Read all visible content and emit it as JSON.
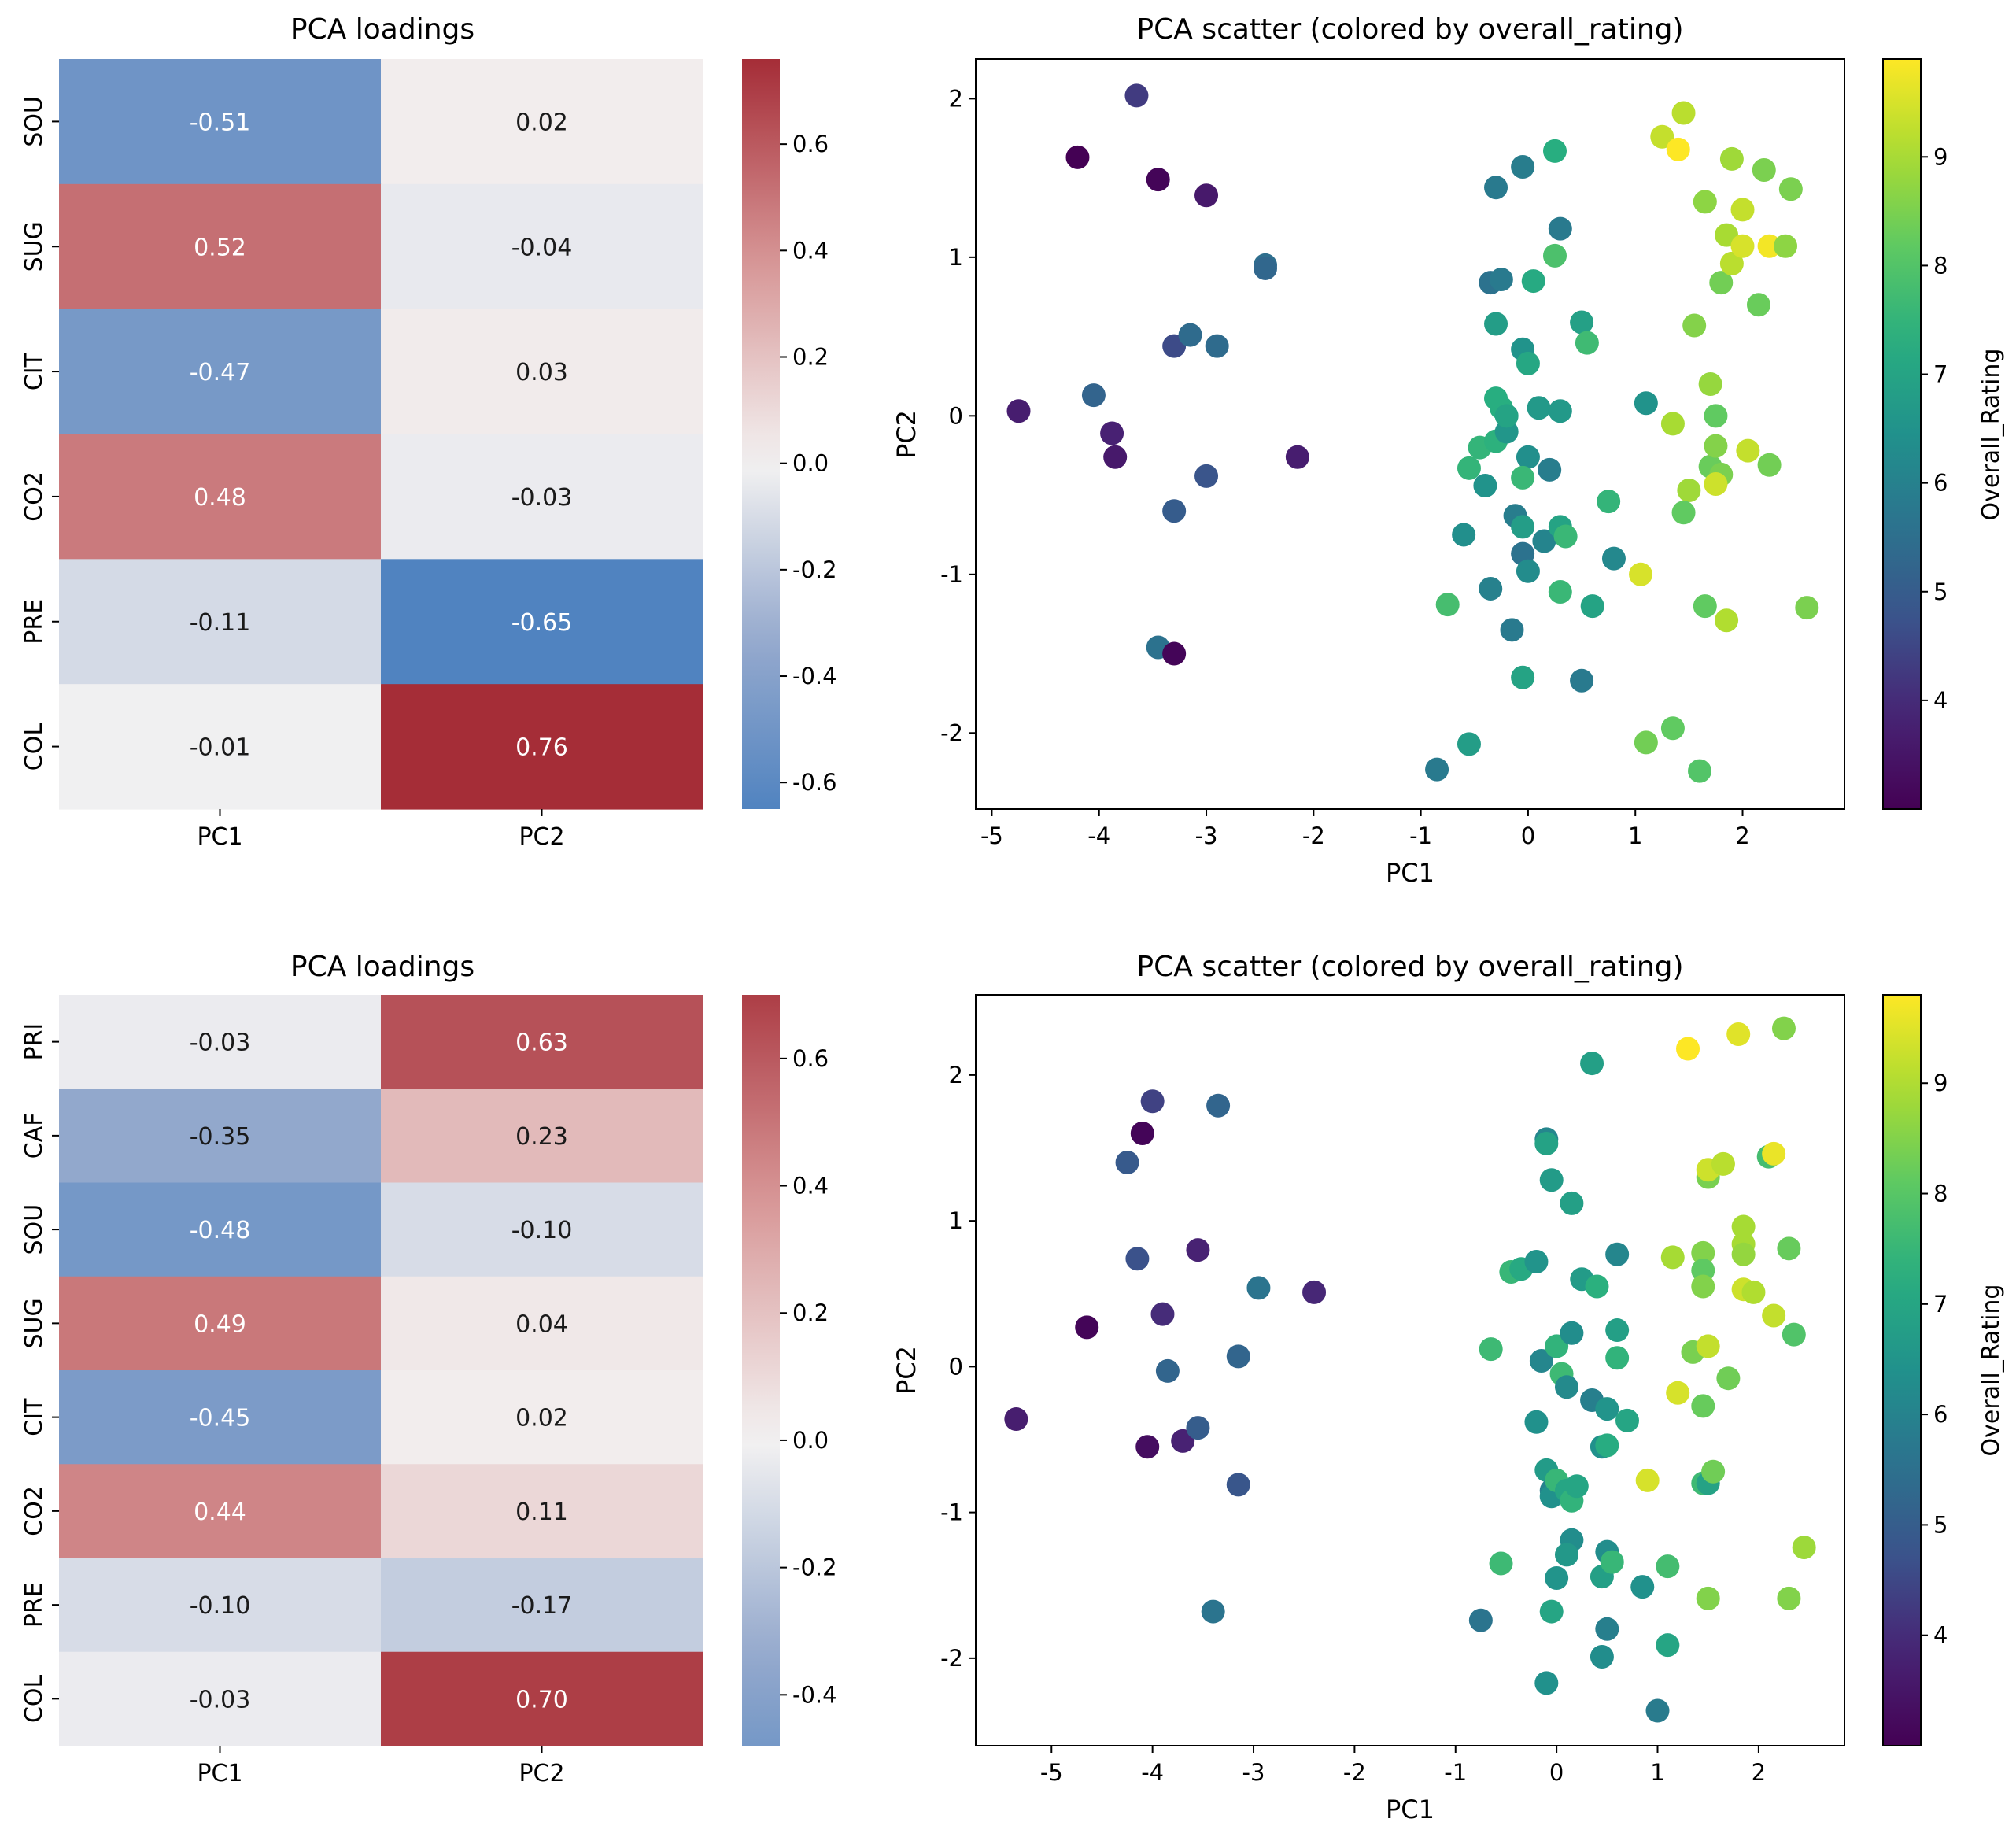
{
  "chart_data": [
    {
      "type": "heatmap",
      "title": "PCA loadings",
      "rows": [
        "SOU",
        "SUG",
        "CIT",
        "CO2",
        "PRE",
        "COL"
      ],
      "columns": [
        "PC1",
        "PC2"
      ],
      "values": [
        [
          -0.51,
          0.02
        ],
        [
          0.52,
          -0.04
        ],
        [
          -0.47,
          0.03
        ],
        [
          0.48,
          -0.03
        ],
        [
          -0.11,
          -0.65
        ],
        [
          -0.01,
          0.76
        ]
      ],
      "labels": [
        [
          "-0.51",
          "0.02"
        ],
        [
          "0.52",
          "-0.04"
        ],
        [
          "-0.47",
          "0.03"
        ],
        [
          "0.48",
          "-0.03"
        ],
        [
          "-0.11",
          "-0.65"
        ],
        [
          "-0.01",
          "0.76"
        ]
      ],
      "colorbar": {
        "range": [
          -0.65,
          0.76
        ],
        "ticks": [
          -0.6,
          -0.4,
          -0.2,
          0.0,
          0.2,
          0.4,
          0.6
        ],
        "tick_labels": [
          "-0.6",
          "-0.4",
          "-0.2",
          "0.0",
          "0.2",
          "0.4",
          "0.6"
        ]
      }
    },
    {
      "type": "scatter",
      "title": "PCA scatter (colored by overall_rating)",
      "xlabel": "PC1",
      "ylabel": "PC2",
      "xlim": [
        -5.15,
        2.95
      ],
      "ylim": [
        -2.48,
        2.25
      ],
      "xticks": [
        -5,
        -4,
        -3,
        -2,
        -1,
        0,
        1,
        2
      ],
      "xtick_labels": [
        "-5",
        "-4",
        "-3",
        "-2",
        "-1",
        "0",
        "1",
        "2"
      ],
      "yticks": [
        -2,
        -1,
        0,
        1,
        2
      ],
      "ytick_labels": [
        "-2",
        "-1",
        "0",
        "1",
        "2"
      ],
      "colorbar": {
        "label": "Overall_Rating",
        "range": [
          3.0,
          9.9
        ],
        "ticks": [
          4,
          5,
          6,
          7,
          8,
          9
        ],
        "tick_labels": [
          "4",
          "5",
          "6",
          "7",
          "8",
          "9"
        ]
      },
      "points": [
        [
          -4.75,
          0.03,
          3.7
        ],
        [
          -4.2,
          1.63,
          3.0
        ],
        [
          -4.05,
          0.13,
          5.2
        ],
        [
          -3.88,
          -0.11,
          3.8
        ],
        [
          -3.85,
          -0.26,
          3.6
        ],
        [
          -3.65,
          2.02,
          4.3
        ],
        [
          -3.45,
          1.49,
          3.1
        ],
        [
          -3.45,
          -1.46,
          5.6
        ],
        [
          -3.3,
          0.44,
          4.6
        ],
        [
          -3.3,
          -0.6,
          5.0
        ],
        [
          -3.3,
          -1.5,
          3.1
        ],
        [
          -3.15,
          0.51,
          5.4
        ],
        [
          -3.0,
          1.39,
          3.6
        ],
        [
          -3.0,
          -0.38,
          4.8
        ],
        [
          -2.9,
          0.44,
          5.4
        ],
        [
          -2.45,
          0.95,
          5.5
        ],
        [
          -2.45,
          0.93,
          5.3
        ],
        [
          -2.15,
          -0.26,
          3.7
        ],
        [
          -0.85,
          -2.23,
          5.8
        ],
        [
          -0.75,
          -1.19,
          7.8
        ],
        [
          -0.55,
          -2.07,
          6.8
        ],
        [
          -0.6,
          -0.75,
          6.4
        ],
        [
          -0.55,
          -0.33,
          7.5
        ],
        [
          -0.45,
          -0.2,
          7.5
        ],
        [
          -0.4,
          -0.44,
          6.5
        ],
        [
          -0.35,
          -1.09,
          6.0
        ],
        [
          -0.3,
          0.11,
          7.3
        ],
        [
          -0.3,
          -0.16,
          7.4
        ],
        [
          -0.25,
          0.05,
          7.3
        ],
        [
          -0.15,
          -1.35,
          5.8
        ],
        [
          -0.2,
          -0.1,
          6.6
        ],
        [
          -0.12,
          -0.63,
          5.9
        ],
        [
          -0.05,
          -0.87,
          5.6
        ],
        [
          -0.05,
          -1.65,
          7.0
        ],
        [
          0.0,
          -0.26,
          6.4
        ],
        [
          0.0,
          -0.98,
          6.3
        ],
        [
          -0.05,
          0.42,
          6.5
        ],
        [
          0.0,
          0.33,
          7.1
        ],
        [
          -0.05,
          -0.39,
          7.6
        ],
        [
          -0.05,
          -0.7,
          6.8
        ],
        [
          0.1,
          0.05,
          6.7
        ],
        [
          0.2,
          -0.34,
          5.9
        ],
        [
          0.15,
          -0.79,
          6.1
        ],
        [
          0.3,
          -0.7,
          7.0
        ],
        [
          0.35,
          -0.76,
          7.6
        ],
        [
          0.3,
          -1.11,
          7.6
        ],
        [
          0.5,
          -1.67,
          5.8
        ],
        [
          0.6,
          -1.2,
          7.0
        ],
        [
          0.8,
          -0.9,
          6.2
        ],
        [
          0.75,
          -0.54,
          7.5
        ],
        [
          0.3,
          0.03,
          6.7
        ],
        [
          -0.2,
          0.0,
          7.0
        ],
        [
          -0.3,
          0.58,
          6.8
        ],
        [
          -0.35,
          0.84,
          5.6
        ],
        [
          -0.25,
          0.86,
          5.8
        ],
        [
          0.05,
          0.85,
          7.2
        ],
        [
          0.25,
          1.01,
          7.9
        ],
        [
          0.3,
          1.18,
          5.8
        ],
        [
          -0.3,
          1.44,
          5.8
        ],
        [
          -0.05,
          1.57,
          5.9
        ],
        [
          0.25,
          1.67,
          7.3
        ],
        [
          0.5,
          0.59,
          6.9
        ],
        [
          0.55,
          0.46,
          7.7
        ],
        [
          1.05,
          -1.0,
          9.5
        ],
        [
          1.1,
          -2.06,
          8.4
        ],
        [
          1.1,
          0.08,
          6.5
        ],
        [
          1.35,
          -0.05,
          9.0
        ],
        [
          1.35,
          -1.97,
          8.2
        ],
        [
          1.5,
          -0.47,
          8.9
        ],
        [
          1.45,
          -0.61,
          8.2
        ],
        [
          1.55,
          0.57,
          8.6
        ],
        [
          1.6,
          -2.24,
          8.0
        ],
        [
          1.65,
          -1.2,
          8.2
        ],
        [
          1.65,
          1.35,
          8.7
        ],
        [
          1.7,
          -0.32,
          8.3
        ],
        [
          1.7,
          0.2,
          8.8
        ],
        [
          1.75,
          -0.19,
          8.6
        ],
        [
          1.8,
          0.84,
          8.4
        ],
        [
          1.85,
          -1.29,
          9.1
        ],
        [
          1.85,
          1.14,
          9.0
        ],
        [
          1.9,
          0.96,
          9.2
        ],
        [
          1.9,
          1.62,
          8.9
        ],
        [
          1.75,
          0.0,
          8.2
        ],
        [
          1.8,
          -0.37,
          8.5
        ],
        [
          1.75,
          -0.43,
          9.4
        ],
        [
          2.0,
          1.3,
          9.3
        ],
        [
          2.0,
          1.07,
          9.5
        ],
        [
          2.05,
          -0.22,
          9.3
        ],
        [
          2.15,
          0.7,
          8.3
        ],
        [
          2.2,
          1.55,
          8.5
        ],
        [
          2.25,
          1.07,
          9.8
        ],
        [
          2.25,
          -0.31,
          8.4
        ],
        [
          2.4,
          1.07,
          8.7
        ],
        [
          2.45,
          1.43,
          8.5
        ],
        [
          2.6,
          -1.21,
          8.5
        ],
        [
          1.25,
          1.76,
          9.3
        ],
        [
          1.4,
          1.68,
          9.9
        ],
        [
          1.45,
          1.91,
          9.2
        ]
      ]
    },
    {
      "type": "heatmap",
      "title": "PCA loadings",
      "rows": [
        "PRI",
        "CAF",
        "SOU",
        "SUG",
        "CIT",
        "CO2",
        "PRE",
        "COL"
      ],
      "columns": [
        "PC1",
        "PC2"
      ],
      "values": [
        [
          -0.03,
          0.63
        ],
        [
          -0.35,
          0.23
        ],
        [
          -0.48,
          -0.1
        ],
        [
          0.49,
          0.04
        ],
        [
          -0.45,
          0.02
        ],
        [
          0.44,
          0.11
        ],
        [
          -0.1,
          -0.17
        ],
        [
          -0.03,
          0.7
        ]
      ],
      "labels": [
        [
          "-0.03",
          "0.63"
        ],
        [
          "-0.35",
          "0.23"
        ],
        [
          "-0.48",
          "-0.10"
        ],
        [
          "0.49",
          "0.04"
        ],
        [
          "-0.45",
          "0.02"
        ],
        [
          "0.44",
          "0.11"
        ],
        [
          "-0.10",
          "-0.17"
        ],
        [
          "-0.03",
          "0.70"
        ]
      ],
      "colorbar": {
        "range": [
          -0.48,
          0.7
        ],
        "ticks": [
          -0.4,
          -0.2,
          0.0,
          0.2,
          0.4,
          0.6
        ],
        "tick_labels": [
          "-0.4",
          "-0.2",
          "0.0",
          "0.2",
          "0.4",
          "0.6"
        ]
      }
    },
    {
      "type": "scatter",
      "title": "PCA scatter (colored by overall_rating)",
      "xlabel": "PC1",
      "ylabel": "PC2",
      "xlim": [
        -5.75,
        2.85
      ],
      "ylim": [
        -2.6,
        2.55
      ],
      "xticks": [
        -5,
        -4,
        -3,
        -2,
        -1,
        0,
        1,
        2
      ],
      "xtick_labels": [
        "-5",
        "-4",
        "-3",
        "-2",
        "-1",
        "0",
        "1",
        "2"
      ],
      "yticks": [
        -2,
        -1,
        0,
        1,
        2
      ],
      "ytick_labels": [
        "-2",
        "-1",
        "0",
        "1",
        "2"
      ],
      "colorbar": {
        "label": "Overall_Rating",
        "range": [
          3.0,
          9.8
        ],
        "ticks": [
          4,
          5,
          6,
          7,
          8,
          9
        ],
        "tick_labels": [
          "4",
          "5",
          "6",
          "7",
          "8",
          "9"
        ]
      },
      "points": [
        [
          -5.35,
          -0.36,
          3.7
        ],
        [
          -4.65,
          0.27,
          3.1
        ],
        [
          -4.1,
          1.6,
          3.1
        ],
        [
          -4.25,
          1.4,
          4.9
        ],
        [
          -4.15,
          0.74,
          4.7
        ],
        [
          -4.0,
          1.82,
          4.4
        ],
        [
          -4.05,
          -0.55,
          3.3
        ],
        [
          -3.9,
          0.36,
          4.0
        ],
        [
          -3.85,
          -0.03,
          5.2
        ],
        [
          -3.7,
          -0.51,
          3.8
        ],
        [
          -3.55,
          0.8,
          3.8
        ],
        [
          -3.55,
          -0.42,
          5.0
        ],
        [
          -3.35,
          1.79,
          5.2
        ],
        [
          -3.15,
          0.07,
          5.2
        ],
        [
          -3.15,
          -0.81,
          4.8
        ],
        [
          -2.95,
          0.54,
          5.6
        ],
        [
          -3.4,
          -1.68,
          5.6
        ],
        [
          -2.4,
          0.51,
          3.9
        ],
        [
          -0.75,
          -1.74,
          5.6
        ],
        [
          -0.65,
          0.12,
          7.6
        ],
        [
          -0.55,
          -1.35,
          7.6
        ],
        [
          -0.45,
          0.65,
          7.5
        ],
        [
          -0.35,
          0.67,
          7.1
        ],
        [
          -0.2,
          0.72,
          6.5
        ],
        [
          -0.2,
          -0.38,
          6.4
        ],
        [
          -0.15,
          0.04,
          6.1
        ],
        [
          -0.1,
          1.56,
          6.1
        ],
        [
          -0.1,
          1.53,
          6.9
        ],
        [
          -0.1,
          -2.17,
          6.4
        ],
        [
          -0.05,
          1.28,
          6.7
        ],
        [
          -0.1,
          -0.71,
          6.7
        ],
        [
          -0.05,
          -0.85,
          6.0
        ],
        [
          -0.05,
          -0.89,
          6.4
        ],
        [
          -0.05,
          -1.68,
          7.0
        ],
        [
          0.0,
          0.14,
          7.4
        ],
        [
          0.0,
          -1.45,
          6.5
        ],
        [
          0.0,
          -0.78,
          7.5
        ],
        [
          0.05,
          -0.05,
          7.6
        ],
        [
          0.1,
          -0.14,
          6.2
        ],
        [
          0.1,
          -0.85,
          7.0
        ],
        [
          0.15,
          -0.92,
          7.4
        ],
        [
          0.15,
          1.12,
          6.8
        ],
        [
          0.15,
          -1.19,
          6.3
        ],
        [
          0.15,
          0.23,
          6.3
        ],
        [
          0.1,
          -1.29,
          6.6
        ],
        [
          0.2,
          -0.82,
          7.0
        ],
        [
          0.25,
          0.6,
          6.7
        ],
        [
          0.35,
          2.08,
          6.8
        ],
        [
          0.35,
          -0.23,
          5.9
        ],
        [
          0.4,
          0.55,
          7.3
        ],
        [
          0.45,
          -1.44,
          6.8
        ],
        [
          0.45,
          -1.99,
          6.3
        ],
        [
          0.45,
          -0.55,
          6.4
        ],
        [
          0.5,
          -1.27,
          6.3
        ],
        [
          0.5,
          -0.29,
          6.5
        ],
        [
          0.5,
          -0.54,
          7.2
        ],
        [
          0.55,
          -1.34,
          7.5
        ],
        [
          0.5,
          -1.8,
          5.9
        ],
        [
          0.6,
          0.77,
          6.1
        ],
        [
          0.6,
          0.25,
          6.8
        ],
        [
          0.6,
          0.06,
          7.4
        ],
        [
          0.7,
          -0.37,
          7.0
        ],
        [
          0.85,
          -1.51,
          6.4
        ],
        [
          0.9,
          -0.78,
          9.4
        ],
        [
          1.0,
          -2.36,
          5.8
        ],
        [
          1.1,
          -1.91,
          7.0
        ],
        [
          1.1,
          -1.37,
          7.7
        ],
        [
          1.15,
          0.75,
          8.9
        ],
        [
          1.2,
          -0.18,
          9.4
        ],
        [
          1.3,
          2.18,
          9.8
        ],
        [
          1.35,
          0.1,
          8.4
        ],
        [
          1.45,
          0.78,
          8.5
        ],
        [
          1.45,
          0.66,
          8.1
        ],
        [
          1.45,
          0.55,
          8.5
        ],
        [
          1.45,
          -0.27,
          8.2
        ],
        [
          1.45,
          -0.8,
          7.6
        ],
        [
          1.5,
          1.3,
          8.4
        ],
        [
          1.5,
          1.35,
          9.3
        ],
        [
          1.5,
          0.14,
          9.2
        ],
        [
          1.5,
          -1.59,
          8.5
        ],
        [
          1.5,
          -0.8,
          6.9
        ],
        [
          1.55,
          -0.72,
          8.3
        ],
        [
          1.65,
          1.39,
          9.1
        ],
        [
          1.7,
          -0.08,
          8.3
        ],
        [
          1.8,
          2.28,
          9.5
        ],
        [
          1.85,
          0.84,
          8.9
        ],
        [
          1.85,
          0.96,
          8.9
        ],
        [
          1.85,
          0.77,
          8.7
        ],
        [
          1.85,
          0.53,
          9.3
        ],
        [
          1.95,
          0.51,
          9.0
        ],
        [
          2.1,
          1.44,
          7.7
        ],
        [
          2.15,
          1.46,
          9.6
        ],
        [
          2.15,
          0.35,
          9.2
        ],
        [
          2.25,
          2.32,
          8.5
        ],
        [
          2.3,
          0.81,
          8.2
        ],
        [
          2.35,
          0.22,
          7.9
        ],
        [
          2.3,
          -1.59,
          8.5
        ],
        [
          2.45,
          -1.24,
          8.8
        ]
      ]
    }
  ]
}
